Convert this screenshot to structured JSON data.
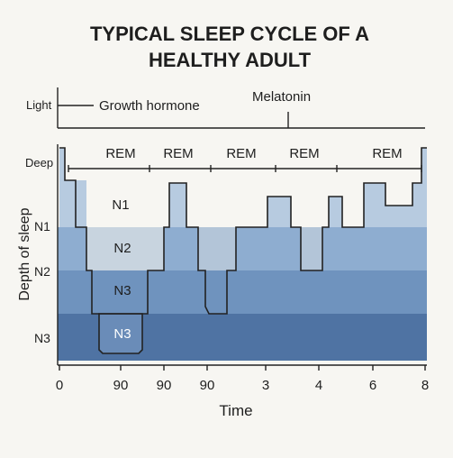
{
  "title": {
    "line1": "TYPICAL SLEEP CYCLE OF A",
    "line2": "HEALTHY ADULT"
  },
  "hormones": {
    "light_label": "Light",
    "growth_hormone": "Growth hormone",
    "melatonin": "Melatonin"
  },
  "y_axis": {
    "label": "Depth of sleep",
    "ticks": [
      "Deep",
      "N1",
      "N2",
      "N3"
    ]
  },
  "x_axis": {
    "label": "Time",
    "ticks": [
      "0",
      "90",
      "90",
      "90",
      "3",
      "4",
      "6",
      "8"
    ]
  },
  "rem_labels": [
    "REM",
    "REM",
    "REM",
    "REM",
    "REM"
  ],
  "stage_labels": [
    "N1",
    "N2",
    "N3",
    "N3"
  ],
  "colors": {
    "background": "#f7f6f2",
    "band_n1": "#8eadd0",
    "band_n2": "#6f93be",
    "band_n3": "#4f73a3",
    "rem_fill": "#c7d7e8",
    "n1_region_fill": "#b7cbe0",
    "n2_region_fill": "#c8d4df",
    "n3_box_fill": "#6a8cb8",
    "line": "#222222"
  }
}
